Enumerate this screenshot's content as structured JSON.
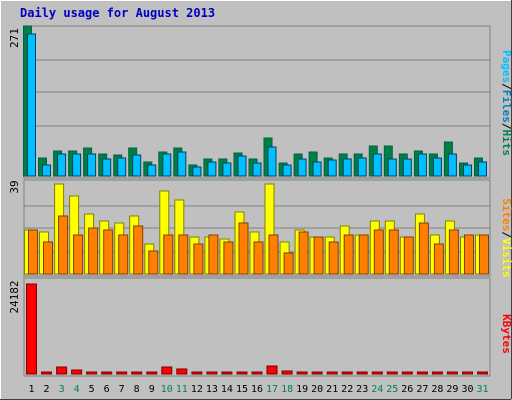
{
  "chart_data": {
    "type": "bar",
    "title": "Daily usage for August 2013",
    "colors": {
      "background": "#c0c0c0",
      "title": "#0000c0",
      "hits": "#008040",
      "files": "#00c0ff",
      "pages": "#0080c0",
      "visits": "#ffff00",
      "sites": "#ff8000",
      "kbytes": "#ff0000",
      "weekend_day": "#00805c",
      "grid": "#808080"
    },
    "categories": [
      "1",
      "2",
      "3",
      "4",
      "5",
      "6",
      "7",
      "8",
      "9",
      "10",
      "11",
      "12",
      "13",
      "14",
      "15",
      "16",
      "17",
      "18",
      "19",
      "20",
      "21",
      "22",
      "23",
      "24",
      "25",
      "26",
      "27",
      "28",
      "29",
      "30",
      "31"
    ],
    "weekend_days": [
      "3",
      "4",
      "10",
      "11",
      "17",
      "18",
      "24",
      "25",
      "31"
    ],
    "panels": [
      {
        "id": "hits",
        "max_label": "271",
        "ylim": [
          0,
          271
        ],
        "legend": [
          "Pages",
          "/",
          "Files",
          "/",
          "Hits"
        ],
        "legend_colors": [
          "#00c0ff",
          "#000000",
          "#0080c0",
          "#000000",
          "#00805c"
        ],
        "series": [
          {
            "name": "Hits",
            "values": [
              271,
              32,
              46,
              45,
              50,
              40,
              38,
              50,
              25,
              44,
              50,
              20,
              30,
              30,
              42,
              31,
              68,
              23,
              40,
              44,
              32,
              40,
              40,
              54,
              55,
              40,
              46,
              40,
              62,
              24,
              32
            ]
          },
          {
            "name": "Files",
            "values": [
              257,
              20,
              40,
              40,
              40,
              30,
              32,
              38,
              20,
              40,
              44,
              16,
              26,
              24,
              36,
              24,
              53,
              20,
              30,
              26,
              29,
              30,
              32,
              40,
              30,
              30,
              40,
              32,
              40,
              20,
              26
            ]
          },
          {
            "name": "Pages",
            "values": [
              0,
              0,
              0,
              0,
              0,
              0,
              0,
              0,
              0,
              0,
              0,
              0,
              0,
              0,
              0,
              0,
              0,
              0,
              0,
              0,
              0,
              0,
              0,
              0,
              0,
              0,
              0,
              0,
              0,
              0,
              0
            ]
          }
        ]
      },
      {
        "id": "visits",
        "max_label": "39",
        "ylim": [
          0,
          39
        ],
        "legend": [
          "Sites",
          "/",
          "Visits"
        ],
        "legend_colors": [
          "#ff8000",
          "#000000",
          "#ffff00"
        ],
        "series": [
          {
            "name": "Visits",
            "values": [
              19,
              18,
              39,
              34,
              26,
              23,
              22,
              25,
              13,
              36,
              32,
              16,
              16,
              15,
              27,
              18,
              39,
              14,
              19,
              16,
              16,
              21,
              17,
              23,
              23,
              16,
              26,
              17,
              23,
              16,
              17
            ]
          },
          {
            "name": "Sites",
            "values": [
              19,
              14,
              25,
              17,
              20,
              19,
              17,
              21,
              10,
              17,
              17,
              13,
              17,
              14,
              22,
              14,
              17,
              9,
              18,
              16,
              14,
              17,
              17,
              19,
              19,
              16,
              22,
              13,
              19,
              17,
              17
            ]
          }
        ]
      },
      {
        "id": "kbytes",
        "max_label": "24182",
        "ylim": [
          0,
          24182
        ],
        "legend": [
          "KBytes"
        ],
        "legend_colors": [
          "#ff0000"
        ],
        "series": [
          {
            "name": "KBytes",
            "values": [
              24182,
              300,
              1900,
              1100,
              200,
              200,
              200,
              300,
              200,
              1900,
              1400,
              200,
              200,
              200,
              200,
              200,
              2200,
              800,
              200,
              200,
              200,
              200,
              200,
              200,
              200,
              200,
              200,
              200,
              200,
              200,
              200
            ]
          }
        ]
      }
    ]
  }
}
